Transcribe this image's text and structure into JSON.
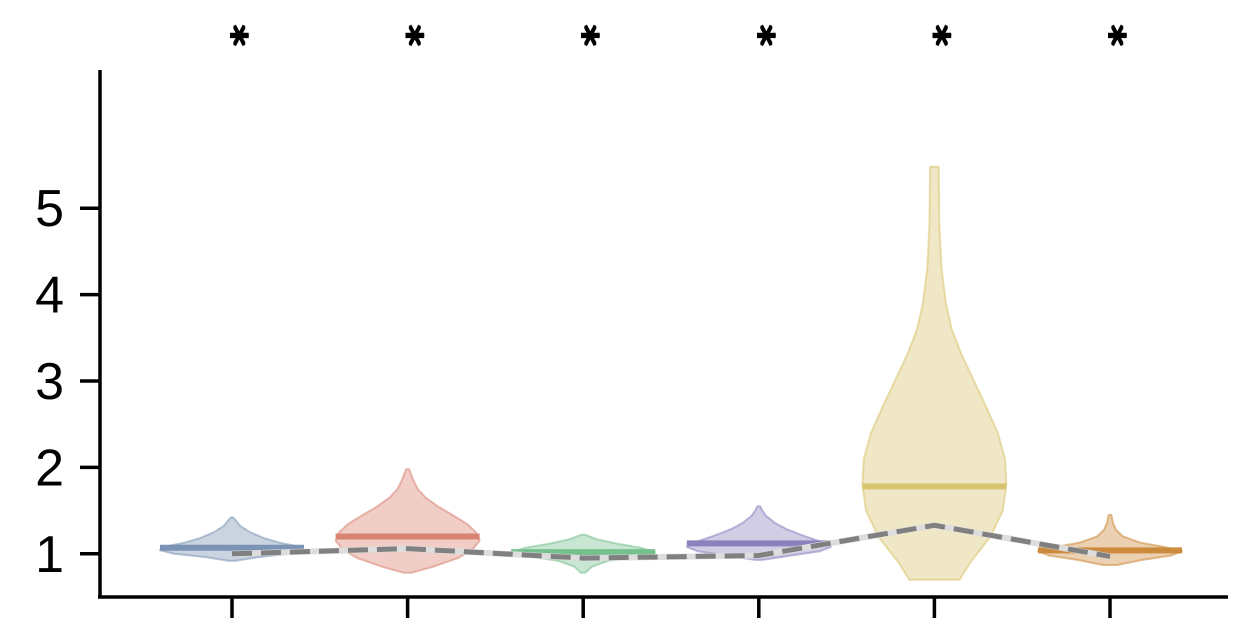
{
  "chart_data": {
    "type": "violin",
    "title": "",
    "xlabel": "",
    "ylabel": "",
    "ylim": [
      0.5,
      6.6
    ],
    "yticks": [
      1,
      2,
      3,
      4,
      5
    ],
    "ytick_labels": [
      "1",
      "2",
      "3",
      "4",
      "5"
    ],
    "grid": false,
    "legend": "none",
    "significance_marker": "***",
    "groups": [
      {
        "color": "#7b93b5",
        "median": 1.07,
        "min": 0.92,
        "max": 1.42,
        "mean": 1.0,
        "profile": [
          [
            0.92,
            0.05
          ],
          [
            0.96,
            0.35
          ],
          [
            1.0,
            0.8
          ],
          [
            1.04,
            1.0
          ],
          [
            1.08,
            0.95
          ],
          [
            1.12,
            0.7
          ],
          [
            1.18,
            0.45
          ],
          [
            1.25,
            0.25
          ],
          [
            1.32,
            0.12
          ],
          [
            1.38,
            0.06
          ],
          [
            1.42,
            0.02
          ]
        ]
      },
      {
        "color": "#d98473",
        "median": 1.2,
        "min": 0.78,
        "max": 1.98,
        "mean": 1.06,
        "profile": [
          [
            0.78,
            0.05
          ],
          [
            0.85,
            0.35
          ],
          [
            0.95,
            0.7
          ],
          [
            1.05,
            0.9
          ],
          [
            1.15,
            1.0
          ],
          [
            1.25,
            0.95
          ],
          [
            1.35,
            0.82
          ],
          [
            1.45,
            0.62
          ],
          [
            1.55,
            0.42
          ],
          [
            1.65,
            0.25
          ],
          [
            1.75,
            0.14
          ],
          [
            1.85,
            0.08
          ],
          [
            1.98,
            0.02
          ]
        ]
      },
      {
        "color": "#76c08e",
        "median": 1.02,
        "min": 0.78,
        "max": 1.22,
        "mean": 0.95,
        "profile": [
          [
            0.78,
            0.03
          ],
          [
            0.85,
            0.12
          ],
          [
            0.92,
            0.35
          ],
          [
            0.97,
            0.75
          ],
          [
            1.02,
            1.0
          ],
          [
            1.07,
            0.8
          ],
          [
            1.12,
            0.45
          ],
          [
            1.17,
            0.18
          ],
          [
            1.22,
            0.03
          ]
        ]
      },
      {
        "color": "#8a82bd",
        "median": 1.12,
        "min": 0.93,
        "max": 1.55,
        "mean": 0.98,
        "profile": [
          [
            0.93,
            0.05
          ],
          [
            0.98,
            0.45
          ],
          [
            1.03,
            0.85
          ],
          [
            1.08,
            1.0
          ],
          [
            1.13,
            0.9
          ],
          [
            1.2,
            0.65
          ],
          [
            1.28,
            0.4
          ],
          [
            1.36,
            0.22
          ],
          [
            1.44,
            0.1
          ],
          [
            1.5,
            0.05
          ],
          [
            1.55,
            0.02
          ]
        ]
      },
      {
        "color": "#d9c470",
        "median": 1.78,
        "min": 0.7,
        "max": 5.48,
        "mean": 1.33,
        "profile": [
          [
            0.7,
            0.35
          ],
          [
            0.9,
            0.5
          ],
          [
            1.2,
            0.78
          ],
          [
            1.5,
            0.95
          ],
          [
            1.8,
            1.0
          ],
          [
            2.1,
            0.98
          ],
          [
            2.4,
            0.88
          ],
          [
            2.7,
            0.72
          ],
          [
            3.0,
            0.55
          ],
          [
            3.3,
            0.38
          ],
          [
            3.6,
            0.24
          ],
          [
            3.9,
            0.16
          ],
          [
            4.3,
            0.1
          ],
          [
            4.8,
            0.07
          ],
          [
            5.48,
            0.06
          ]
        ]
      },
      {
        "color": "#cc8a3c",
        "median": 1.04,
        "min": 0.87,
        "max": 1.45,
        "mean": 0.97,
        "profile": [
          [
            0.87,
            0.1
          ],
          [
            0.93,
            0.45
          ],
          [
            0.98,
            0.85
          ],
          [
            1.03,
            1.0
          ],
          [
            1.08,
            0.75
          ],
          [
            1.13,
            0.42
          ],
          [
            1.2,
            0.18
          ],
          [
            1.28,
            0.08
          ],
          [
            1.36,
            0.04
          ],
          [
            1.45,
            0.02
          ]
        ]
      }
    ]
  }
}
